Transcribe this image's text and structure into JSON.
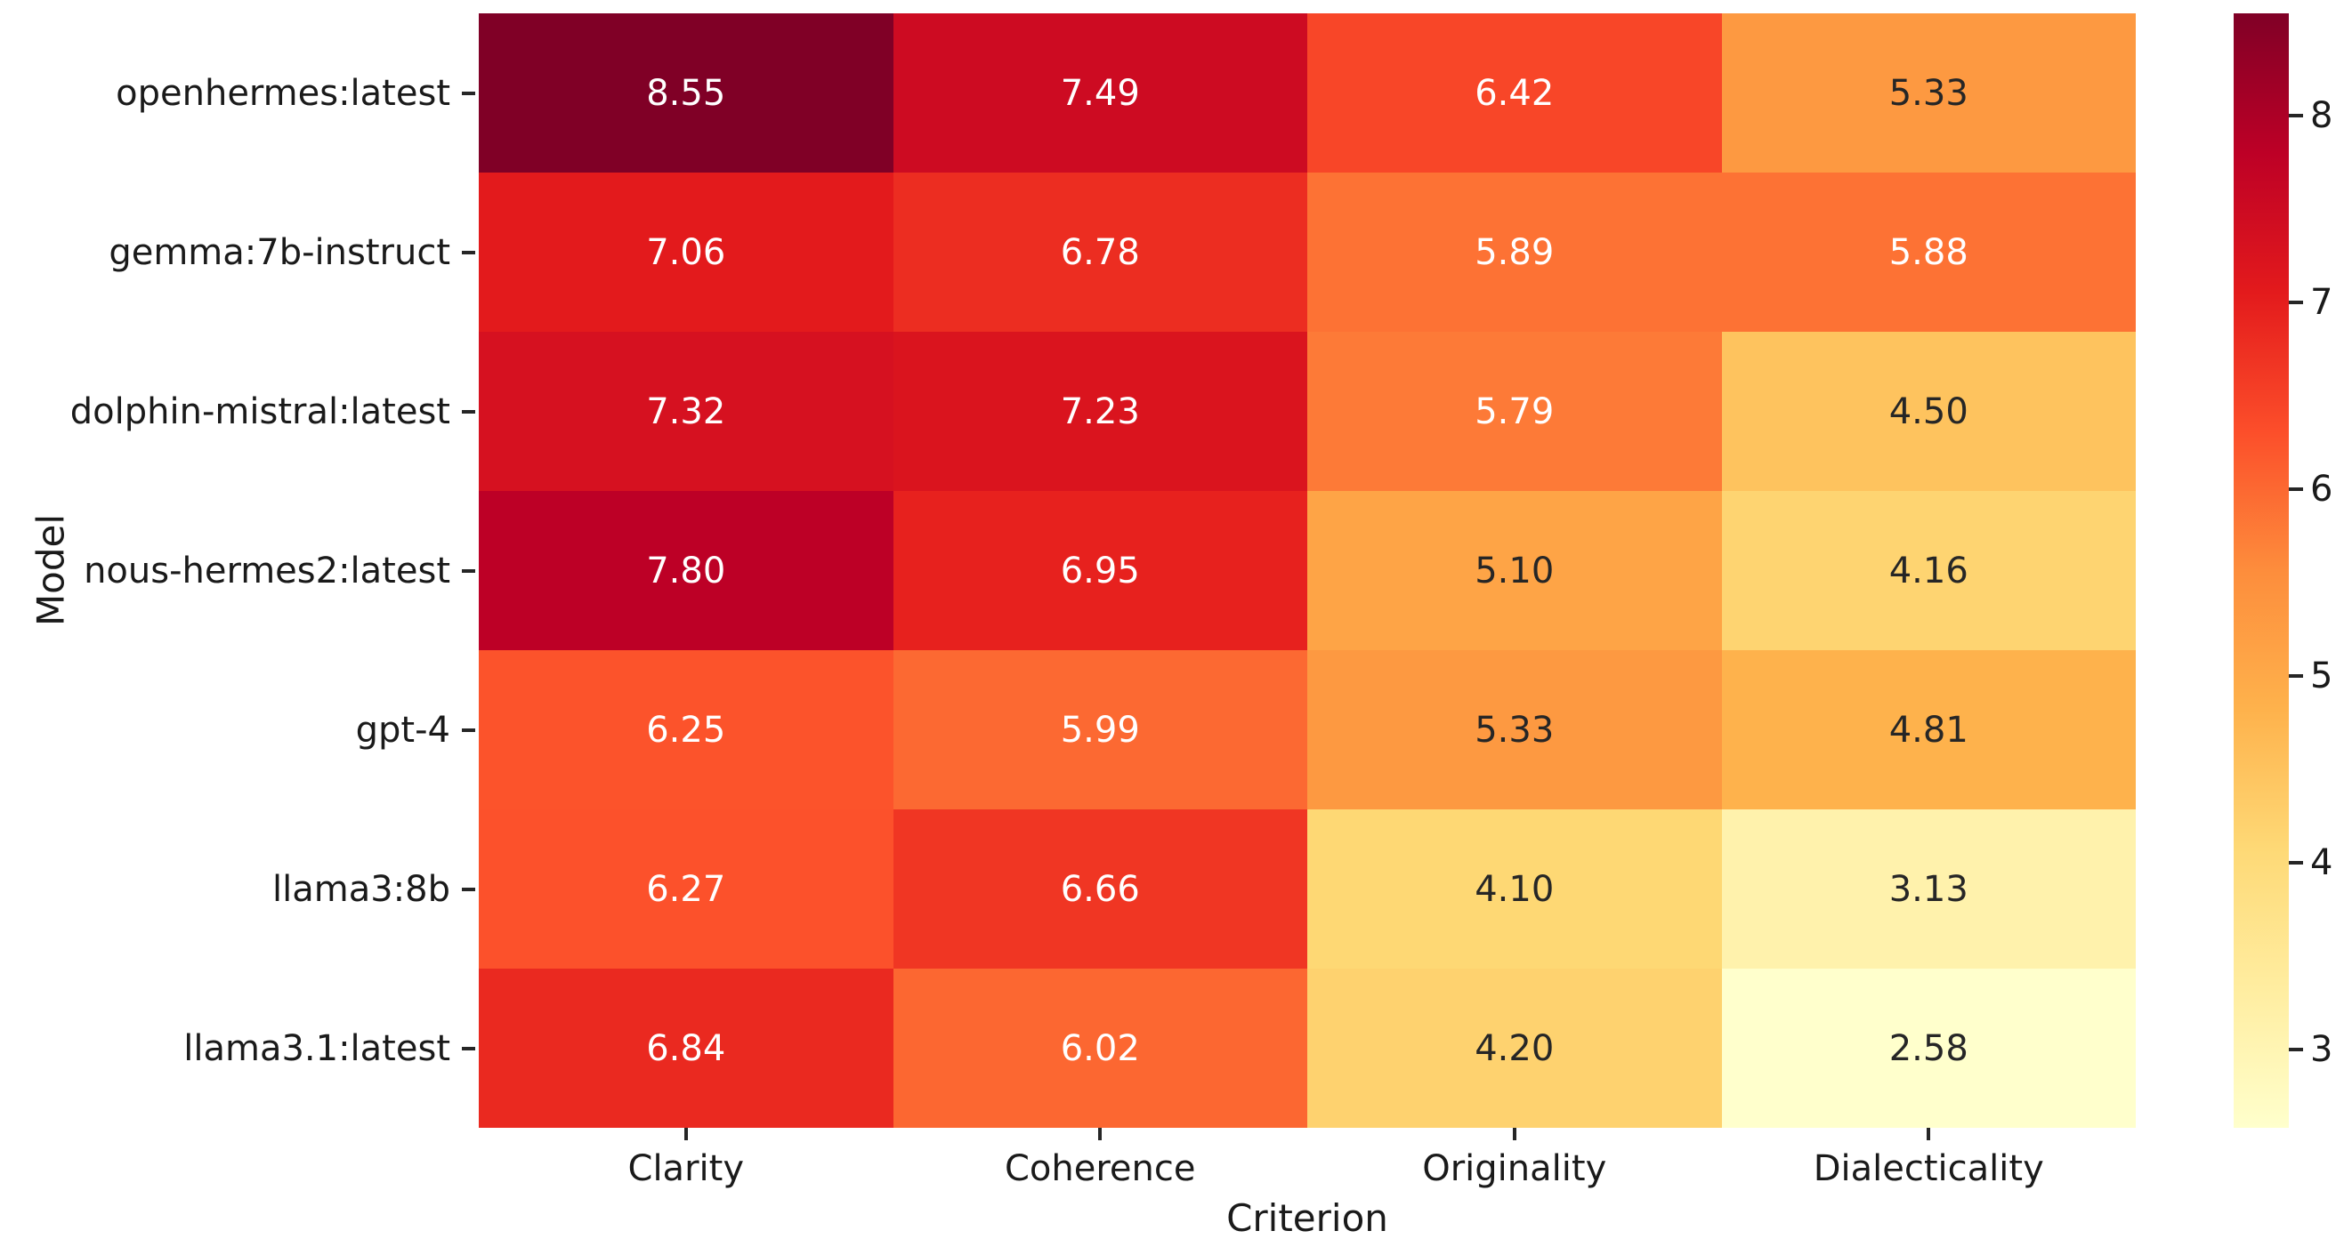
{
  "figure": {
    "background": "#ffffff",
    "tick_color": "#262626",
    "label_color": "#1a1a1a"
  },
  "chart_data": {
    "type": "heatmap",
    "title": "",
    "xlabel": "Criterion",
    "ylabel": "Model",
    "columns": [
      "Clarity",
      "Coherence",
      "Originality",
      "Dialecticality"
    ],
    "rows": [
      "openhermes:latest",
      "gemma:7b-instruct",
      "dolphin-mistral:latest",
      "nous-hermes2:latest",
      "gpt-4",
      "llama3:8b",
      "llama3.1:latest"
    ],
    "values": [
      [
        8.55,
        7.49,
        6.42,
        5.33
      ],
      [
        7.06,
        6.78,
        5.89,
        5.88
      ],
      [
        7.32,
        7.23,
        5.79,
        4.5
      ],
      [
        7.8,
        6.95,
        5.1,
        4.16
      ],
      [
        6.25,
        5.99,
        5.33,
        4.81
      ],
      [
        6.27,
        6.66,
        4.1,
        3.13
      ],
      [
        6.84,
        6.02,
        4.2,
        2.58
      ]
    ],
    "annotation_decimals": 2,
    "annotation_text_light": "#ffffff",
    "annotation_text_dark": "#262626",
    "colormap": "YlOrRd",
    "colormap_stops": [
      "#ffffcc",
      "#ffeda0",
      "#fed976",
      "#feb24c",
      "#fd8d3c",
      "#fc4e2a",
      "#e31a1c",
      "#bd0026",
      "#800026"
    ],
    "vmin": 2.58,
    "vmax": 8.55,
    "colorbar_ticks": [
      8,
      7,
      6,
      5,
      4,
      3
    ],
    "colorbar_position": "right",
    "grid": false,
    "legend_position": "none"
  }
}
